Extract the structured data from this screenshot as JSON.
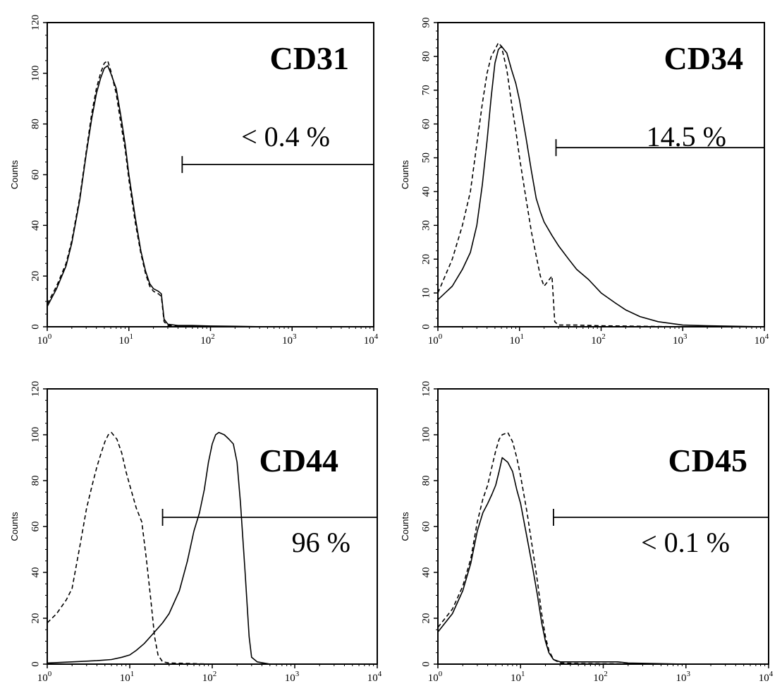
{
  "chart_data": [
    {
      "type": "line",
      "marker": "CD31",
      "annotation": "< 0.4 %",
      "ylabel": "Counts",
      "xscale": "log",
      "xlim": [
        1,
        10000
      ],
      "ylim": [
        0,
        120
      ],
      "yticks": [
        0,
        20,
        40,
        60,
        80,
        100,
        120
      ],
      "xticks": [
        {
          "value": 1,
          "base": "10",
          "exp": "0"
        },
        {
          "value": 10,
          "base": "10",
          "exp": "1"
        },
        {
          "value": 100,
          "base": "10",
          "exp": "2"
        },
        {
          "value": 1000,
          "base": "10",
          "exp": "3"
        },
        {
          "value": 10000,
          "base": "10",
          "exp": "4"
        }
      ],
      "gate": {
        "from": 45,
        "to": 10000,
        "y": 64
      },
      "series": [
        {
          "style": "solid",
          "x": [
            1,
            1.3,
            1.7,
            2,
            2.5,
            3,
            3.5,
            4,
            4.5,
            5,
            5.5,
            6,
            7,
            8,
            9,
            10,
            12,
            14,
            16,
            18,
            20,
            23,
            25,
            27,
            30,
            40,
            60,
            100,
            200,
            500,
            1000,
            10000
          ],
          "y": [
            8,
            15,
            24,
            33,
            50,
            68,
            82,
            92,
            98,
            102,
            103,
            100,
            94,
            83,
            72,
            60,
            43,
            30,
            22,
            17,
            15,
            14,
            13,
            3,
            1,
            0.5,
            0.5,
            0.3,
            0.2,
            0,
            0,
            0
          ]
        },
        {
          "style": "dashed",
          "x": [
            1,
            1.3,
            1.7,
            2,
            2.5,
            3,
            3.5,
            4,
            4.5,
            5,
            5.5,
            6,
            7,
            8,
            9,
            10,
            12,
            14,
            16,
            18,
            20,
            23,
            25,
            27,
            30,
            40,
            60,
            100,
            200,
            500,
            1000,
            10000
          ],
          "y": [
            9,
            16,
            25,
            34,
            51,
            69,
            84,
            94,
            100,
            104,
            105,
            101,
            92,
            80,
            70,
            58,
            41,
            29,
            21,
            16,
            14,
            13,
            12,
            2,
            0.5,
            0.3,
            0.2,
            0,
            0,
            0,
            0,
            0
          ]
        }
      ]
    },
    {
      "type": "line",
      "marker": "CD34",
      "annotation": "14.5 %",
      "ylabel": "Counts",
      "xscale": "log",
      "xlim": [
        1,
        10000
      ],
      "ylim": [
        0,
        90
      ],
      "yticks": [
        0,
        10,
        20,
        30,
        40,
        50,
        60,
        70,
        80,
        90
      ],
      "xticks": [
        {
          "value": 1,
          "base": "10",
          "exp": "0"
        },
        {
          "value": 10,
          "base": "10",
          "exp": "1"
        },
        {
          "value": 100,
          "base": "10",
          "exp": "2"
        },
        {
          "value": 1000,
          "base": "10",
          "exp": "3"
        },
        {
          "value": 10000,
          "base": "10",
          "exp": "4"
        }
      ],
      "gate": {
        "from": 28,
        "to": 10000,
        "y": 53
      },
      "series": [
        {
          "style": "solid",
          "x": [
            1,
            1.5,
            2,
            2.5,
            3,
            3.5,
            4,
            4.5,
            5,
            5.5,
            6,
            7,
            8,
            9,
            10,
            12,
            14,
            16,
            18,
            20,
            25,
            30,
            40,
            50,
            70,
            100,
            150,
            200,
            300,
            500,
            1000,
            2000,
            10000
          ],
          "y": [
            8,
            12,
            17,
            22,
            30,
            42,
            55,
            68,
            78,
            82,
            83,
            81,
            76,
            72,
            67,
            56,
            46,
            38,
            34,
            31,
            27,
            24,
            20,
            17,
            14,
            10,
            7,
            5,
            3,
            1.5,
            0.5,
            0.3,
            0
          ]
        },
        {
          "style": "dashed",
          "x": [
            1,
            1.5,
            2,
            2.5,
            3,
            3.5,
            4,
            4.5,
            5,
            5.5,
            6,
            7,
            8,
            9,
            10,
            12,
            14,
            16,
            18,
            20,
            25,
            27,
            30,
            50,
            100,
            1000,
            10000
          ],
          "y": [
            10,
            20,
            30,
            40,
            54,
            66,
            75,
            80,
            82,
            84,
            83,
            76,
            66,
            58,
            50,
            38,
            28,
            21,
            15,
            12,
            15,
            1.5,
            0.5,
            0.5,
            0.3,
            0,
            0
          ]
        }
      ]
    },
    {
      "type": "line",
      "marker": "CD44",
      "annotation": "96 %",
      "ylabel": "Counts",
      "xscale": "log",
      "xlim": [
        1,
        10000
      ],
      "ylim": [
        0,
        120
      ],
      "yticks": [
        0,
        20,
        40,
        60,
        80,
        100,
        120
      ],
      "xticks": [
        {
          "value": 1,
          "base": "10",
          "exp": "0"
        },
        {
          "value": 10,
          "base": "10",
          "exp": "1"
        },
        {
          "value": 100,
          "base": "10",
          "exp": "2"
        },
        {
          "value": 1000,
          "base": "10",
          "exp": "3"
        },
        {
          "value": 10000,
          "base": "10",
          "exp": "4"
        }
      ],
      "gate": {
        "from": 25,
        "to": 10000,
        "y": 64
      },
      "series": [
        {
          "style": "solid",
          "x": [
            1,
            2,
            4,
            6,
            8,
            10,
            12,
            15,
            20,
            25,
            30,
            40,
            50,
            60,
            70,
            80,
            90,
            100,
            110,
            120,
            140,
            160,
            180,
            200,
            220,
            250,
            280,
            300,
            350,
            500,
            10000
          ],
          "y": [
            0.5,
            1,
            1.5,
            2,
            3,
            4,
            6,
            9,
            14,
            18,
            22,
            32,
            45,
            58,
            66,
            76,
            88,
            96,
            100,
            101,
            100,
            98,
            96,
            88,
            70,
            40,
            12,
            3,
            1,
            0,
            0
          ]
        },
        {
          "style": "dashed",
          "x": [
            1,
            1.3,
            1.7,
            2,
            2.5,
            3,
            3.5,
            4,
            4.5,
            5,
            5.5,
            6,
            7,
            8,
            9,
            10,
            12,
            14,
            16,
            18,
            20,
            22,
            25,
            30,
            50,
            100,
            1000,
            10000
          ],
          "y": [
            18,
            22,
            28,
            33,
            52,
            68,
            78,
            86,
            92,
            97,
            100,
            101,
            98,
            92,
            84,
            78,
            68,
            62,
            45,
            28,
            12,
            4,
            1,
            0.5,
            0.3,
            0,
            0,
            0
          ]
        }
      ]
    },
    {
      "type": "line",
      "marker": "CD45",
      "annotation": "< 0.1 %",
      "ylabel": "Counts",
      "xscale": "log",
      "xlim": [
        1,
        10000
      ],
      "ylim": [
        0,
        120
      ],
      "yticks": [
        0,
        20,
        40,
        60,
        80,
        100,
        120
      ],
      "xticks": [
        {
          "value": 1,
          "base": "10",
          "exp": "0"
        },
        {
          "value": 10,
          "base": "10",
          "exp": "1"
        },
        {
          "value": 100,
          "base": "10",
          "exp": "2"
        },
        {
          "value": 1000,
          "base": "10",
          "exp": "3"
        },
        {
          "value": 10000,
          "base": "10",
          "exp": "4"
        }
      ],
      "gate": {
        "from": 25,
        "to": 10000,
        "y": 64
      },
      "series": [
        {
          "style": "solid",
          "x": [
            1,
            1.5,
            2,
            2.5,
            3,
            3.5,
            4,
            4.5,
            5,
            5.5,
            6,
            7,
            8,
            9,
            10,
            12,
            14,
            16,
            18,
            20,
            22,
            25,
            30,
            50,
            100,
            150,
            200,
            1000,
            10000
          ],
          "y": [
            14,
            22,
            32,
            44,
            58,
            66,
            70,
            74,
            78,
            84,
            90,
            88,
            84,
            76,
            70,
            55,
            42,
            30,
            18,
            10,
            5,
            2,
            1,
            1,
            1,
            1,
            0.5,
            0,
            0
          ]
        },
        {
          "style": "dashed",
          "x": [
            1,
            1.5,
            2,
            2.5,
            3,
            3.5,
            4,
            4.5,
            5,
            5.5,
            6,
            7,
            8,
            9,
            10,
            12,
            14,
            16,
            18,
            20,
            22,
            25,
            30,
            50,
            100,
            1000,
            10000
          ],
          "y": [
            16,
            24,
            34,
            46,
            62,
            72,
            78,
            86,
            93,
            98,
            100,
            101,
            97,
            90,
            82,
            66,
            50,
            36,
            22,
            12,
            6,
            2,
            0.5,
            0.3,
            0.2,
            0,
            0
          ]
        }
      ]
    }
  ]
}
